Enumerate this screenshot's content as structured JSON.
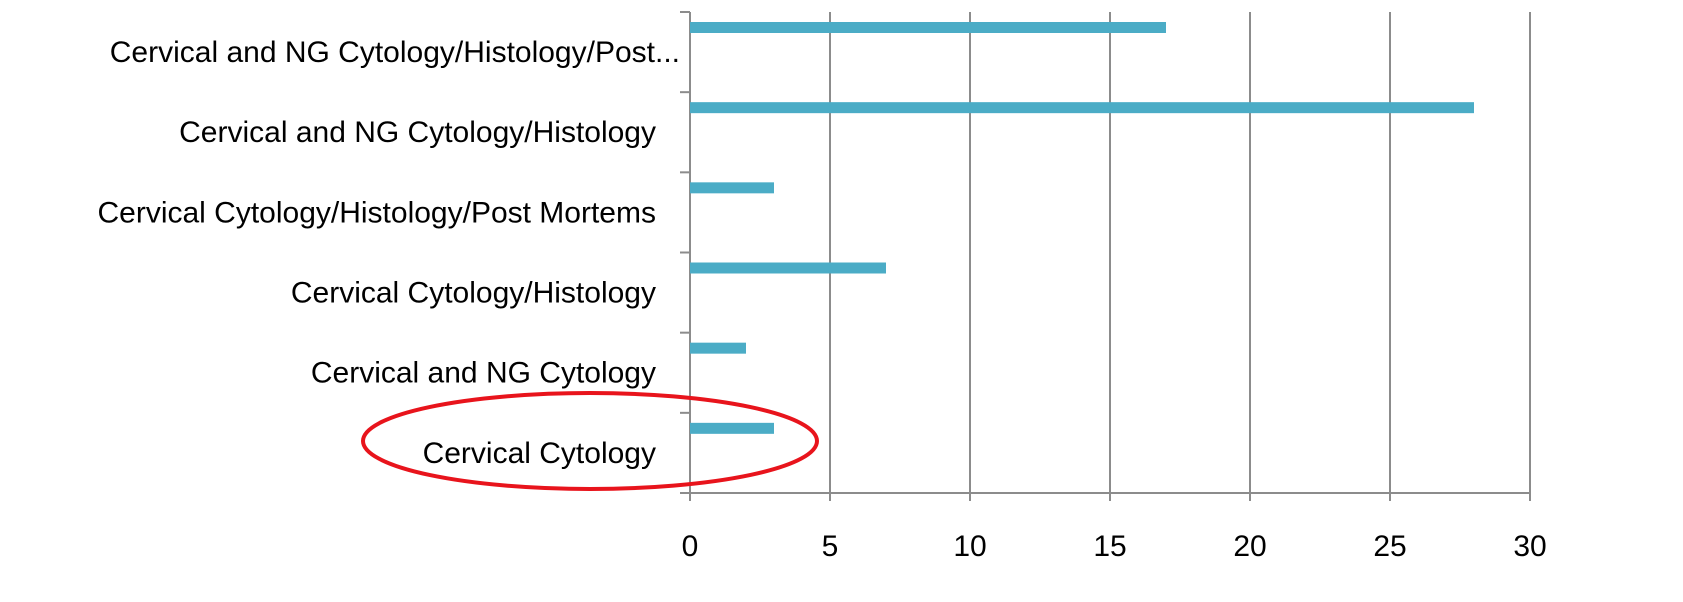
{
  "chart_data": {
    "type": "bar",
    "orientation": "horizontal",
    "categories": [
      "Cervical and NG Cytology/Histology/Post...",
      "Cervical and NG Cytology/Histology",
      "Cervical Cytology/Histology/Post Mortems",
      "Cervical Cytology/Histology",
      "Cervical and NG Cytology",
      "Cervical Cytology"
    ],
    "values": [
      17,
      28,
      3,
      7,
      2,
      3
    ],
    "color": "#4bacc6",
    "xlim": [
      0,
      30
    ],
    "xticks": [
      0,
      5,
      10,
      15,
      20,
      25,
      30
    ],
    "grid": true
  }
}
